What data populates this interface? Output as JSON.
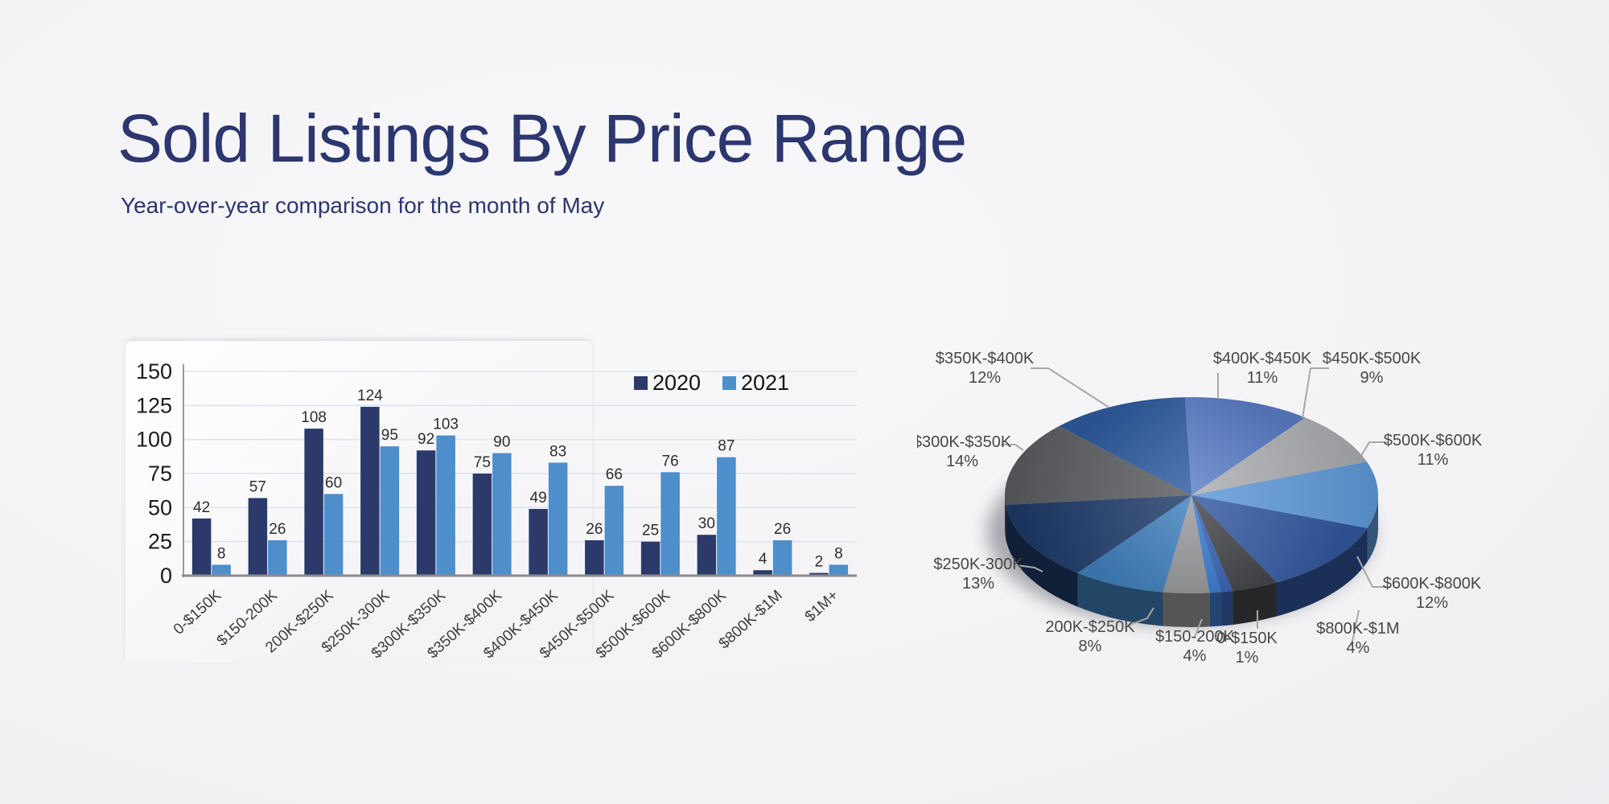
{
  "header": {
    "title": "Sold Listings By Price Range",
    "subtitle": "Year-over-year comparison for the month of May",
    "title_color": "#2c366f"
  },
  "chart_data": [
    {
      "type": "bar",
      "name": "sold-listings-by-price-range-bar-chart",
      "categories": [
        "0-$150K",
        "$150-200K",
        "200K-$250K",
        "$250K-300K",
        "$300K-$350K",
        "$350K-$400K",
        "$400K-$450K",
        "$450K-$500K",
        "$500K-$600K",
        "$600K-$800K",
        "$800K-$1M",
        "$1M+"
      ],
      "series": [
        {
          "name": "2020",
          "color": "#2b3a6b",
          "values": [
            42,
            57,
            108,
            124,
            92,
            75,
            49,
            26,
            25,
            30,
            4,
            2
          ]
        },
        {
          "name": "2021",
          "color": "#4d8ecb",
          "values": [
            8,
            26,
            60,
            95,
            103,
            90,
            83,
            66,
            76,
            87,
            26,
            8
          ]
        }
      ],
      "title": "",
      "xlabel": "",
      "ylabel": "",
      "ylim": [
        0,
        150
      ],
      "yticks": [
        0,
        25,
        50,
        75,
        100,
        125,
        150
      ],
      "grid": true,
      "legend_position": "top-right",
      "gridline_color": "#dfe3ef",
      "axis_color": "#9a9a9a",
      "value_label_color": "#2e2e2e",
      "tick_label_color": "#1c1c1c",
      "x_label_color": "#3d3d3d"
    },
    {
      "type": "pie",
      "name": "sold-listings-share-pie-chart",
      "style": "3d",
      "categories": [
        "0-$150K",
        "$150-200K",
        "200K-$250K",
        "$250K-300K",
        "$300K-$350K",
        "$350K-$400K",
        "$400K-$450K",
        "$450K-$500K",
        "$500K-$600K",
        "$600K-$800K",
        "$800K-$1M",
        "$1M+"
      ],
      "values_pct": [
        1,
        4,
        8,
        13,
        14,
        12,
        11,
        9,
        11,
        12,
        4,
        1
      ],
      "colors": [
        "#3d7fd2",
        "#9a9b9e",
        "#4080bc",
        "#1e3a68",
        "#5a5b60",
        "#2e5b9e",
        "#5b7ec6",
        "#abadb2",
        "#5d98d6",
        "#33589f",
        "#46474c",
        "#3c66b5"
      ],
      "label_visible": [
        true,
        true,
        true,
        true,
        true,
        true,
        true,
        true,
        true,
        true,
        true,
        false
      ],
      "label_color": "#474747",
      "leader_color": "#a8a8a8"
    }
  ]
}
